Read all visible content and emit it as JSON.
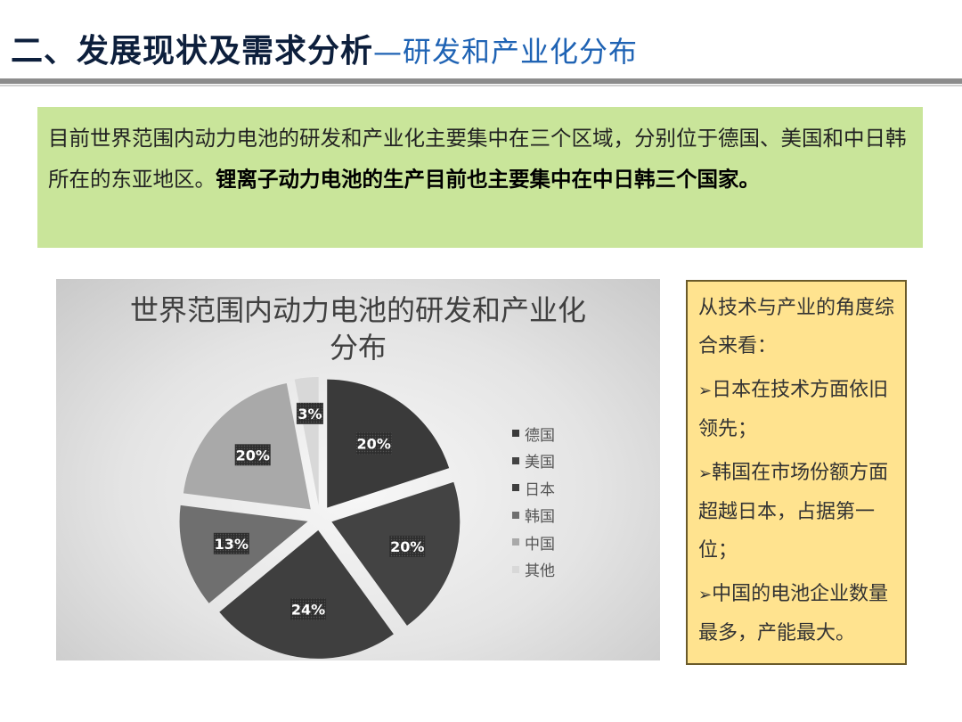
{
  "header": {
    "title_main": "二、发展现状及需求分析",
    "title_sub": "—研发和产业化分布"
  },
  "intro": {
    "normal_text": "目前世界范围内动力电池的研发和产业化主要集中在三个区域，分别位于德国、美国和中日韩所在的东亚地区。",
    "bold_text": "锂离子动力电池的生产目前也主要集中在中日韩三个国家。"
  },
  "chart_data": {
    "type": "pie",
    "title": "世界范围内动力电池的研发和产业化分布",
    "title_lines": [
      "世界范围内动力电池的研发和产业化",
      "分布"
    ],
    "categories": [
      "德国",
      "美国",
      "日本",
      "韩国",
      "中国",
      "其他"
    ],
    "values": [
      20,
      20,
      24,
      13,
      20,
      3
    ],
    "labels": [
      "20%",
      "20%",
      "24%",
      "13%",
      "20%",
      "3%"
    ],
    "colors": [
      "#3a3a3a",
      "#434343",
      "#3f3f3f",
      "#6f6f6f",
      "#a9a9a9",
      "#d8d8d8"
    ],
    "legend_position": "right",
    "exploded": true
  },
  "side_panel": {
    "intro": "从技术与产业的角度综合来看：",
    "bullet_icon": "arrow-bullet-icon",
    "bullets": [
      "日本在技术方面依旧领先；",
      "韩国在市场份额方面超越日本，占据第一位；",
      "中国的电池企业数量最多，产能最大。"
    ]
  }
}
